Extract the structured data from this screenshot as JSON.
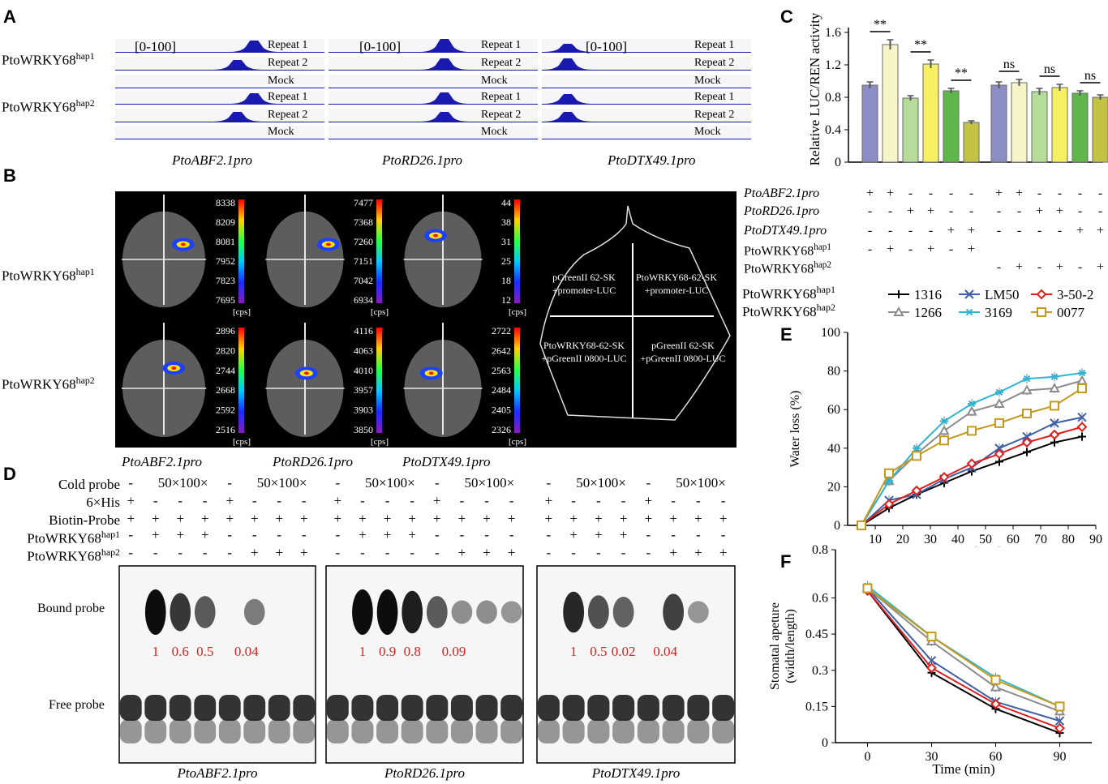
{
  "panels": {
    "A": "A",
    "B": "B",
    "C": "C",
    "D": "D",
    "E": "E",
    "F": "F"
  },
  "panel_a": {
    "genotype_rows": [
      {
        "base": "PtoWRKY68",
        "sup": "hap1"
      },
      {
        "base": "PtoWRKY68",
        "sup": "hap2"
      }
    ],
    "range_label": "[0-100]",
    "track_labels": [
      "Repeat 1",
      "Repeat 2",
      "Mock",
      "Repeat 1",
      "Repeat 2",
      "Mock"
    ],
    "promoters": [
      "PtoABF2.1pro",
      "PtoRD26.1pro",
      "PtoDTX49.1pro"
    ]
  },
  "panel_b": {
    "genotype_rows": [
      {
        "base": "PtoWRKY68",
        "sup": "hap1"
      },
      {
        "base": "PtoWRKY68",
        "sup": "hap2"
      }
    ],
    "scales": [
      [
        "8338",
        "8209",
        "8081",
        "7952",
        "7823",
        "7695"
      ],
      [
        "7477",
        "7368",
        "7260",
        "7151",
        "7042",
        "6934"
      ],
      [
        "44",
        "38",
        "31",
        "25",
        "18",
        "12"
      ],
      [
        "2896",
        "2820",
        "2744",
        "2668",
        "2592",
        "2516"
      ],
      [
        "4116",
        "4063",
        "4010",
        "3957",
        "3903",
        "3850"
      ],
      [
        "2722",
        "2642",
        "2563",
        "2484",
        "2405",
        "2326"
      ]
    ],
    "cps": "[cps]",
    "schema": {
      "tl": [
        "pGreenII 62-SK",
        "+promoter-LUC"
      ],
      "tr": [
        "PtoWRKY68-62-SK",
        "+promoter-LUC"
      ],
      "bl": [
        "PtoWRKY68-62-SK",
        "+pGreenII 0800-LUC"
      ],
      "br": [
        "pGreenII 62-SK",
        "+pGreenII 0800-LUC"
      ]
    },
    "promoters": [
      "PtoABF2.1pro",
      "PtoRD26.1pro",
      "PtoDTX49.1pro"
    ]
  },
  "panel_c": {
    "ylabel": "Relative LUC/REN activity",
    "yticks": [
      "0",
      "0.4",
      "0.8",
      "1.2",
      "1.6"
    ],
    "sig_labels": [
      "**",
      "**",
      "**",
      "ns",
      "ns",
      "ns"
    ],
    "row_labels": [
      "PtoABF2.1pro",
      "PtoRD26.1pro",
      "PtoDTX49.1pro",
      "PtoWRKY68",
      "PtoWRKY68"
    ],
    "row_sups": [
      "",
      "",
      "",
      "hap1",
      "hap2"
    ],
    "matrix_left": [
      [
        "+",
        "+",
        "-",
        "-",
        "-",
        "-"
      ],
      [
        "-",
        "-",
        "+",
        "+",
        "-",
        "-"
      ],
      [
        "-",
        "-",
        "-",
        "-",
        "+",
        "+"
      ],
      [
        "-",
        "+",
        "-",
        "+",
        "-",
        "+"
      ],
      [
        "",
        "",
        "",
        "",
        "",
        ""
      ]
    ],
    "matrix_right": [
      [
        "+",
        "+",
        "-",
        "-",
        "-",
        "-"
      ],
      [
        "-",
        "-",
        "+",
        "+",
        "-",
        "-"
      ],
      [
        "-",
        "-",
        "-",
        "-",
        "+",
        "+"
      ],
      [
        "",
        "",
        "",
        "",
        "",
        ""
      ],
      [
        "-",
        "+",
        "-",
        "+",
        "-",
        "+"
      ]
    ]
  },
  "panel_d": {
    "row_labels": [
      "Cold probe",
      "6×His",
      "Biotin-Probe",
      "PtoWRKY68",
      "PtoWRKY68"
    ],
    "row_sups": [
      "",
      "",
      "",
      "hap1",
      "hap2"
    ],
    "cold_text": "50×100×",
    "lane_signs": [
      [
        "-",
        "",
        "",
        "",
        "-",
        "",
        "",
        ""
      ],
      [
        "+",
        "-",
        "-",
        "-",
        "+",
        "-",
        "-",
        "-"
      ],
      [
        "+",
        "+",
        "+",
        "+",
        "+",
        "+",
        "+",
        "+"
      ],
      [
        "-",
        "+",
        "+",
        "+",
        "-",
        "-",
        "-",
        "-"
      ],
      [
        "-",
        "-",
        "-",
        "-",
        "-",
        "+",
        "+",
        "+"
      ]
    ],
    "bound_label": "Bound probe",
    "free_label": "Free probe",
    "blots": [
      {
        "promoter": "PtoABF2.1pro",
        "values": [
          "1",
          "0.6",
          "0.5",
          "0.04"
        ]
      },
      {
        "promoter": "PtoRD26.1pro",
        "values": [
          "1",
          "0.9",
          "0.8",
          "0.09"
        ]
      },
      {
        "promoter": "PtoDTX49.1pro",
        "values": [
          "1",
          "0.5",
          "0.02",
          "0.04"
        ]
      }
    ],
    "value_color": "#e0201e"
  },
  "legend": {
    "row1_label": {
      "base": "PtoWRKY68",
      "sup": "hap1"
    },
    "row2_label": {
      "base": "PtoWRKY68",
      "sup": "hap2"
    },
    "items": [
      {
        "name": "1316",
        "color": "#000000",
        "marker": "plus"
      },
      {
        "name": "LM50",
        "color": "#3f5fa8",
        "marker": "x"
      },
      {
        "name": "3-50-2",
        "color": "#e0201e",
        "marker": "diamond"
      },
      {
        "name": "1266",
        "color": "#8c8c8c",
        "marker": "triangle"
      },
      {
        "name": "3169",
        "color": "#2fb5d6",
        "marker": "star"
      },
      {
        "name": "0077",
        "color": "#c49a1e",
        "marker": "square"
      }
    ]
  },
  "chart_data": [
    {
      "type": "bar",
      "panel": "C",
      "ylabel": "Relative LUC/REN activity",
      "ylim": [
        0,
        1.6
      ],
      "values": [
        0.95,
        1.45,
        0.79,
        1.21,
        0.88,
        0.49,
        0.95,
        0.98,
        0.87,
        0.92,
        0.85,
        0.8
      ],
      "errors": [
        0.04,
        0.06,
        0.03,
        0.05,
        0.03,
        0.02,
        0.04,
        0.04,
        0.04,
        0.04,
        0.03,
        0.03
      ],
      "colors": [
        "#8a8ec4",
        "#f5f5c8",
        "#b5dc98",
        "#f7ef62",
        "#5fb74c",
        "#c3c244",
        "#8a8ec4",
        "#f5f5c8",
        "#b5dc98",
        "#f7ef62",
        "#5fb74c",
        "#c3c244"
      ]
    },
    {
      "type": "line",
      "panel": "E",
      "xlabel": "Time (min)",
      "ylabel": "Water loss (%)",
      "xlim": [
        0,
        90
      ],
      "ylim": [
        0,
        100
      ],
      "xticks": [
        10,
        20,
        30,
        40,
        50,
        60,
        70,
        80,
        90
      ],
      "yticks": [
        0,
        20,
        40,
        60,
        80,
        100
      ],
      "x": [
        5,
        15,
        25,
        35,
        45,
        55,
        65,
        75,
        85
      ],
      "series": [
        {
          "name": "1316",
          "values": [
            0,
            9,
            16,
            22,
            28,
            33,
            38,
            43,
            46
          ]
        },
        {
          "name": "LM50",
          "values": [
            0,
            13,
            16,
            24,
            30,
            40,
            46,
            53,
            56
          ]
        },
        {
          "name": "3-50-2",
          "values": [
            0,
            11,
            18,
            25,
            32,
            37,
            43,
            47,
            51
          ]
        },
        {
          "name": "1266",
          "values": [
            0,
            23,
            37,
            49,
            59,
            63,
            70,
            71,
            75
          ]
        },
        {
          "name": "3169",
          "values": [
            0,
            23,
            40,
            54,
            63,
            69,
            76,
            77,
            79
          ]
        },
        {
          "name": "0077",
          "values": [
            0,
            27,
            36,
            44,
            49,
            53,
            58,
            62,
            71
          ]
        }
      ]
    },
    {
      "type": "line",
      "panel": "F",
      "xlabel": "Time (min)",
      "ylabel": "Stomatal apeture (width/length)",
      "xlim": [
        -15,
        105
      ],
      "ylim": [
        0,
        0.8
      ],
      "xticks": [
        0,
        30,
        60,
        90
      ],
      "yticks": [
        "0",
        "0.15",
        "0.3",
        "0.45",
        "0.6",
        "0.8"
      ],
      "x": [
        0,
        30,
        60,
        90
      ],
      "series": [
        {
          "name": "1316",
          "values": [
            0.63,
            0.29,
            0.14,
            0.04
          ]
        },
        {
          "name": "LM50",
          "values": [
            0.64,
            0.34,
            0.17,
            0.09
          ]
        },
        {
          "name": "3-50-2",
          "values": [
            0.63,
            0.31,
            0.16,
            0.06
          ]
        },
        {
          "name": "1266",
          "values": [
            0.64,
            0.42,
            0.23,
            0.13
          ]
        },
        {
          "name": "3169",
          "values": [
            0.65,
            0.44,
            0.27,
            0.15
          ]
        },
        {
          "name": "0077",
          "values": [
            0.64,
            0.44,
            0.26,
            0.15
          ]
        }
      ]
    }
  ]
}
